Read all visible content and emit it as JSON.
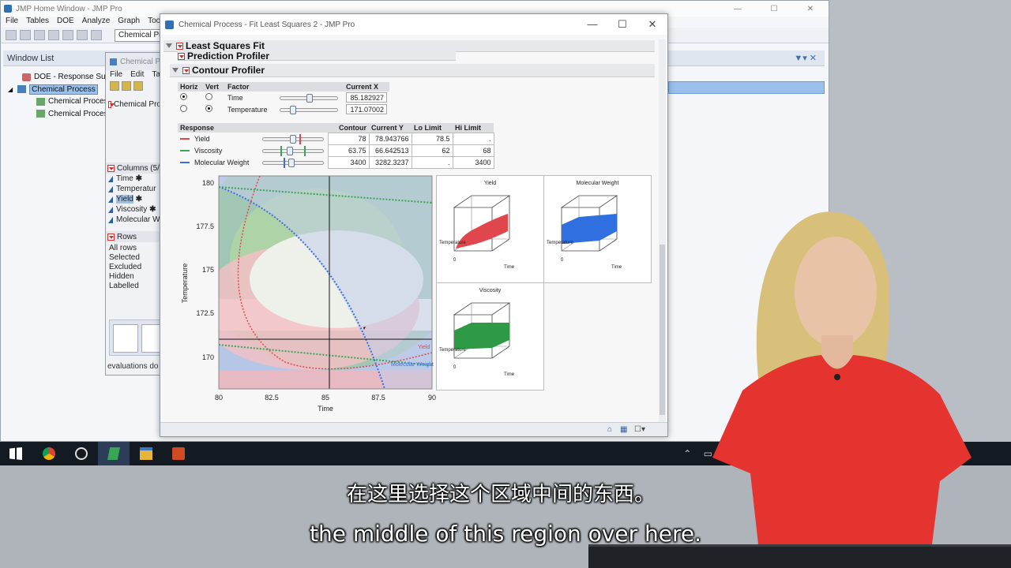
{
  "home_window": {
    "title": "JMP Home Window - JMP Pro",
    "menu": [
      "File",
      "Tables",
      "DOE",
      "Analyze",
      "Graph",
      "Too"
    ],
    "combo_value": "Chemical Proc",
    "window_list_label": "Window List",
    "tree": [
      {
        "label": "DOE - Response Surf",
        "icon": "doe-icon"
      },
      {
        "label": "Chemical Process",
        "icon": "data-table-icon",
        "selected": true
      },
      {
        "label": "Chemical Proces",
        "icon": "report-icon"
      },
      {
        "label": "Chemical Proces",
        "icon": "report-icon"
      }
    ]
  },
  "data_window": {
    "title": "Chemical P",
    "menu": [
      "File",
      "Edit",
      "Ta"
    ],
    "tab_label": "Chemical Pro",
    "columns_header": "Columns (5/",
    "columns": [
      {
        "name": "Time",
        "star": "✱"
      },
      {
        "name": "Temperatur",
        "star": ""
      },
      {
        "name": "Yield",
        "star": "✱",
        "selected": true
      },
      {
        "name": "Viscosity",
        "star": "✱"
      },
      {
        "name": "Molecular W",
        "star": ""
      }
    ],
    "rows_header": "Rows",
    "rows": [
      "All rows",
      "Selected",
      "Excluded",
      "Hidden",
      "Labelled"
    ],
    "status": "evaluations do"
  },
  "fit_window": {
    "title": "Chemical Process - Fit Least Squares 2 - JMP Pro",
    "least_squares_header": "Least Squares Fit",
    "prediction_profiler_header": "Prediction Profiler",
    "contour_profiler_header": "Contour Profiler",
    "factor_table": {
      "headers": {
        "horiz": "Horiz",
        "vert": "Vert",
        "factor": "Factor",
        "current_x": "Current X"
      },
      "rows": [
        {
          "factor": "Time",
          "current_x": "85.182927",
          "horiz": true,
          "vert": false
        },
        {
          "factor": "Temperature",
          "current_x": "171.07002",
          "horiz": false,
          "vert": true
        }
      ]
    },
    "response_table": {
      "headers": {
        "response": "Response",
        "contour": "Contour",
        "current_y": "Current Y",
        "lo_limit": "Lo Limit",
        "hi_limit": "Hi Limit"
      },
      "rows": [
        {
          "response": "Yield",
          "contour": "78",
          "current_y": "78.943766",
          "lo_limit": "78.5",
          "hi_limit": ".",
          "color": "#e0474c"
        },
        {
          "response": "Viscosity",
          "contour": "63.75",
          "current_y": "66.642513",
          "lo_limit": "62",
          "hi_limit": "68",
          "color": "#3aa655"
        },
        {
          "response": "Molecular Weight",
          "contour": "3400",
          "current_y": "3282.3237",
          "lo_limit": ".",
          "hi_limit": "3400",
          "color": "#3b6fd6"
        }
      ]
    },
    "contour_plot": {
      "xlabel": "Time",
      "ylabel": "Temperature",
      "x_ticks": [
        "80",
        "82.5",
        "85",
        "87.5",
        "90"
      ],
      "y_ticks": [
        "180",
        "177.5",
        "175",
        "172.5",
        "170"
      ],
      "curve_labels": [
        "Yield",
        "Molecular Weight"
      ]
    },
    "surface_plots": [
      {
        "title": "Yield",
        "axis_left": "Temperature",
        "axis_bottom": "Time",
        "origin": "0",
        "color": "#e0474c"
      },
      {
        "title": "Molecular Weight",
        "axis_left": "Temperature",
        "axis_bottom": "Time",
        "origin": "0",
        "color": "#2f6fe0"
      },
      {
        "title": "Viscosity",
        "axis_left": "Temperature",
        "axis_bottom": "Time",
        "origin": "0",
        "color": "#2f9a45"
      }
    ]
  },
  "taskbar": {
    "apps": [
      "windows-start-icon",
      "chrome-icon",
      "obs-icon",
      "jmp-icon",
      "file-explorer-icon",
      "powerpoint-icon"
    ]
  },
  "subtitles": {
    "chinese": "在这里选择这个区域中间的东西。",
    "english": "the middle of this region over here."
  }
}
